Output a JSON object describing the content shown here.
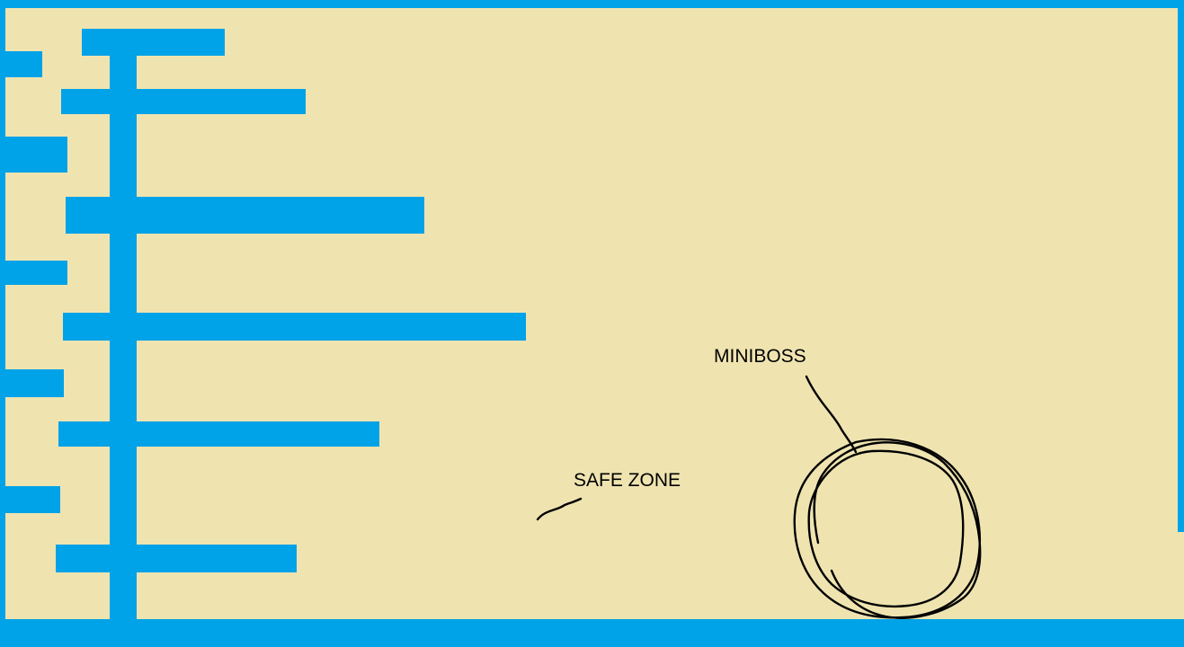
{
  "colors": {
    "background": "#efe4b0",
    "platform": "#00a2e8",
    "ink": "#000000"
  },
  "labels": {
    "miniboss": "MINIBOSS",
    "safe_zone": "SAFE ZONE"
  }
}
